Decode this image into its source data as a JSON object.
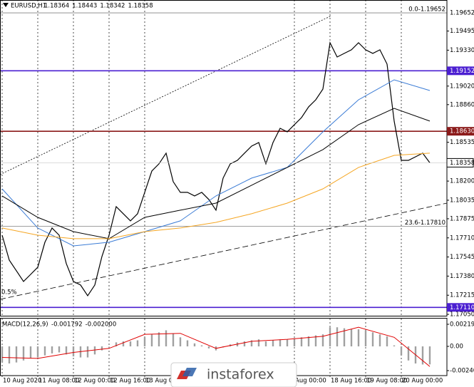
{
  "chart_data": [
    {
      "type": "line",
      "symbol": "EURUSD,H1",
      "ohlc": [
        1.18364,
        1.18443,
        1.18342,
        1.18358
      ],
      "xlim": [
        -0.3,
        62.4
      ],
      "ylim": [
        1.17038,
        1.19763
      ],
      "yticks": [
        1.19495,
        {
          "value": 1.1933,
          "label": "1.19330"
        },
        {
          "value": 1.1902,
          "label": "1.19020"
        },
        {
          "value": 1.1886,
          "label": "1.18860"
        },
        1.18535,
        {
          "value": 1.182,
          "label": "1.18200"
        },
        1.18035,
        1.17875,
        {
          "value": 1.1771,
          "label": "1.17710"
        },
        1.17545,
        {
          "value": 1.1738,
          "label": "1.17380"
        },
        1.17215,
        {
          "value": 1.1705,
          "label": "1.17050"
        }
      ],
      "series": [
        {
          "color": "#000000",
          "x": [
            0,
            1,
            2,
            3,
            4,
            5,
            6,
            7,
            8,
            9,
            10,
            11,
            12,
            13,
            14,
            15,
            16,
            17,
            18,
            19,
            20,
            21,
            22,
            23,
            24,
            25,
            26,
            27,
            28,
            29,
            30,
            31,
            32,
            33,
            34,
            35,
            36,
            37,
            38,
            39,
            40,
            41,
            42,
            43,
            44,
            45,
            46,
            47,
            48,
            49,
            50,
            51,
            52,
            53,
            54,
            55,
            56,
            57,
            58,
            59,
            60
          ],
          "values": [
            1.17733,
            1.17518,
            1.17426,
            1.17334,
            1.17395,
            1.17457,
            1.17672,
            1.17795,
            1.17733,
            1.17488,
            1.17334,
            1.17303,
            1.17211,
            1.17303,
            1.17549,
            1.17733,
            1.1798,
            1.17918,
            1.17857,
            1.17918,
            1.18103,
            1.18287,
            1.18349,
            1.18441,
            1.18195,
            1.18103,
            1.18103,
            1.18072,
            1.18103,
            1.18041,
            1.17949,
            1.18226,
            1.18349,
            1.18379,
            1.18441,
            1.18502,
            1.18533,
            1.18349,
            1.18533,
            1.18656,
            1.18625,
            1.18687,
            1.18748,
            1.18841,
            1.18902,
            1.18994,
            1.19394,
            1.19271,
            1.19302,
            1.19333,
            1.19394,
            1.19333,
            1.19302,
            1.19333,
            1.1921,
            1.18718,
            1.18379,
            1.18379,
            1.1841,
            1.18441,
            1.18358
          ]
        },
        {
          "color": "#3a7bd5",
          "x": [
            0,
            5,
            10,
            15,
            20,
            25,
            30,
            35,
            40,
            45,
            50,
            55,
            60
          ],
          "values": [
            1.18133,
            1.17795,
            1.17641,
            1.17672,
            1.17764,
            1.17857,
            1.18072,
            1.18226,
            1.18318,
            1.18625,
            1.18902,
            1.19074,
            1.18982
          ]
        },
        {
          "color": "#000000",
          "x": [
            0,
            5,
            10,
            15,
            20,
            25,
            30,
            35,
            40,
            45,
            50,
            55,
            60
          ],
          "values": [
            1.18072,
            1.17887,
            1.17764,
            1.17703,
            1.17887,
            1.17949,
            1.1801,
            1.18164,
            1.18318,
            1.18472,
            1.18687,
            1.18828,
            1.18718
          ]
        },
        {
          "color": "#f5a623",
          "x": [
            0,
            5,
            10,
            15,
            20,
            25,
            30,
            35,
            40,
            45,
            50,
            55,
            60
          ],
          "values": [
            1.17795,
            1.17733,
            1.17703,
            1.17703,
            1.17764,
            1.17795,
            1.17844,
            1.17918,
            1.1801,
            1.18133,
            1.18318,
            1.18422,
            1.18441
          ]
        }
      ],
      "levels": [
        {
          "value": 1.19652,
          "color": "#808080",
          "axis_highlight": false
        },
        {
          "value": 1.19152,
          "color": "#4b1fd1",
          "axis_highlight": true
        },
        {
          "value": 1.1863,
          "label": "1.18630",
          "color": "#8b1a1a",
          "axis_highlight": true
        },
        {
          "value": 1.1781,
          "color": "#808080",
          "axis_label": false
        },
        {
          "value": 1.1711,
          "label": "1.17110",
          "color": "#4b1fd1",
          "axis_highlight": true
        }
      ],
      "annotations": [
        "0.0-1.19652",
        "23.6-1.17810",
        "0.5%"
      ]
    },
    {
      "type": "bar",
      "title": "MACD(12,26,9)",
      "header_values": [
        -0.001792,
        -0.002
      ],
      "header_value_labels": [
        "-0.001792",
        "-0.002000"
      ],
      "xlim": [
        -0.3,
        62.4
      ],
      "ylim": [
        -0.002905,
        0.002764
      ],
      "yticks": [
        0.002197,
        {
          "value": 0,
          "label": "0.00"
        },
        -0.002409
      ],
      "xticks": [
        {
          "value": 0,
          "label": "10 Aug 2020"
        },
        {
          "value": 5,
          "label": "11 Aug 08:00"
        },
        {
          "value": 10,
          "label": "12 Aug 00:00"
        },
        {
          "value": 15,
          "label": "12 Aug 16:00"
        },
        {
          "value": 20,
          "label": "13 Aug 08"
        },
        {
          "value": 41,
          "label": "Aug 00:00"
        },
        {
          "value": 46,
          "label": "18 Aug 16:00"
        },
        {
          "value": 51,
          "label": "19 Aug 08:00"
        },
        {
          "value": 56,
          "label": "20 Aug 00:00"
        }
      ],
      "color": "#a0a0a0",
      "values": [
        -0.0016,
        -0.0017,
        -0.0016,
        -0.0014,
        -0.0012,
        -0.0011,
        -0.0009,
        -0.0007,
        -0.0006,
        -0.0008,
        -0.001,
        -0.0011,
        -0.0011,
        -0.0008,
        -0.0004,
        0,
        0.0004,
        0.0005,
        0.0005,
        0.0006,
        0.0009,
        0.0012,
        0.0014,
        0.0016,
        0.0013,
        0.0009,
        0.0006,
        0.0003,
        0.0001,
        -0.0002,
        -0.0004,
        -0.0001,
        0.0002,
        0.0004,
        0.0005,
        0.0006,
        0.0007,
        0.0005,
        0.0006,
        0.0007,
        0.0007,
        0.0008,
        0.0009,
        0.001,
        0.0011,
        0.0012,
        0.0019,
        0.0019,
        0.0018,
        0.0017,
        0.0017,
        0.0016,
        0.0014,
        0.0012,
        0.001,
        0.0001,
        -0.0009,
        -0.0014,
        -0.0017,
        -0.0018,
        -0.001792
      ],
      "series": [
        {
          "color": "#e00000",
          "x": [
            0,
            5,
            10,
            15,
            20,
            25,
            30,
            35,
            40,
            45,
            50,
            55,
            60
          ],
          "values": [
            -0.0011,
            -0.0012,
            -0.0006,
            -0.0002,
            0.0012,
            0.0013,
            -0.0002,
            0.0005,
            0.0007,
            0.001,
            0.0019,
            0.0009,
            -0.002
          ]
        }
      ]
    }
  ],
  "watermark": "instaforex"
}
